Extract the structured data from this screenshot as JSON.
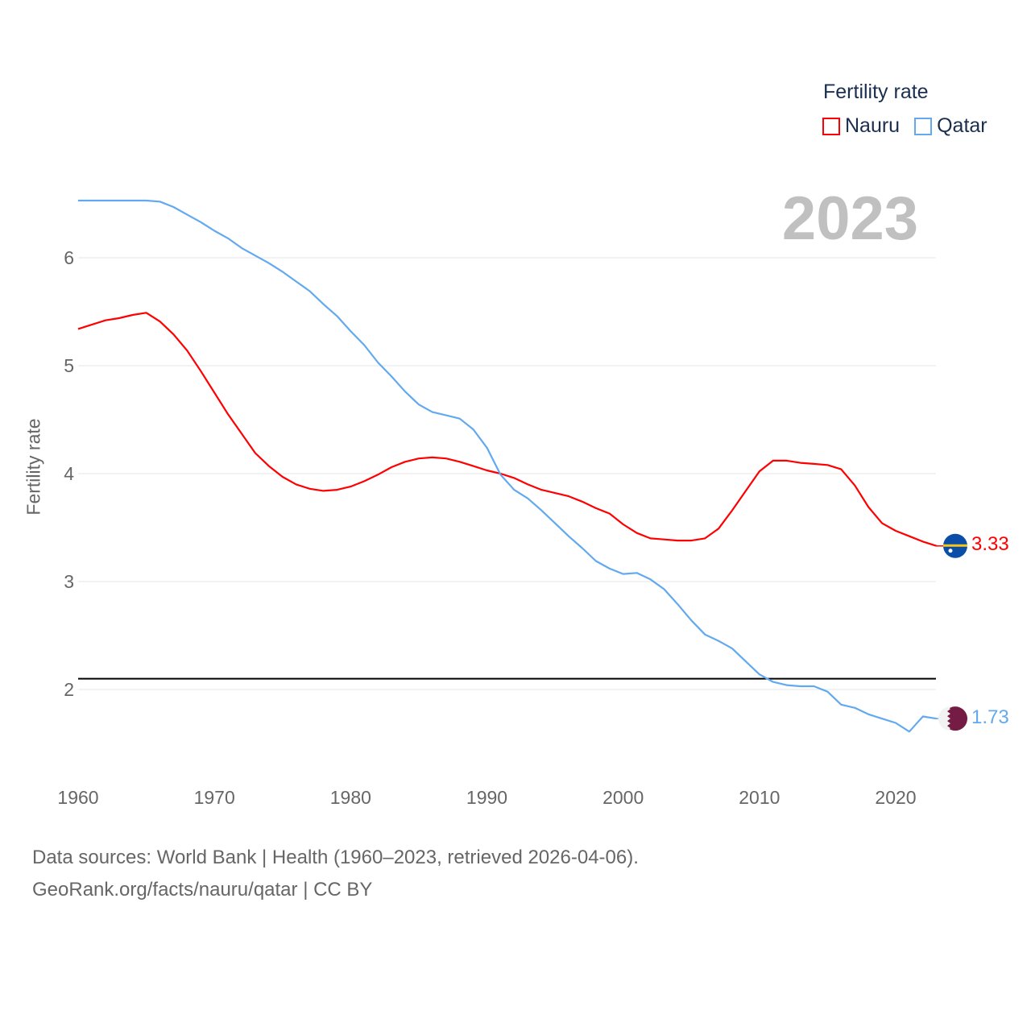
{
  "legend": {
    "title": "Fertility rate",
    "items": [
      {
        "name": "Nauru",
        "color": "#ff0000"
      },
      {
        "name": "Qatar",
        "color": "#63a9f0"
      }
    ]
  },
  "current_year": "2023",
  "footer": {
    "line1": "Data sources: World Bank | Health (1960–2023, retrieved 2026-04-06).",
    "line2": "GeoRank.org/facts/nauru/qatar | CC BY"
  },
  "end_labels": {
    "nauru": "3.33",
    "qatar": "1.73"
  },
  "chart_data": {
    "type": "line",
    "title": "Fertility rate",
    "xlabel": "",
    "ylabel": "Fertility rate",
    "xlim": [
      1960,
      2023
    ],
    "ylim": [
      1.3,
      6.6
    ],
    "x_ticks": [
      "1960",
      "1970",
      "1980",
      "1990",
      "2000",
      "2010",
      "2020"
    ],
    "y_ticks": [
      "2",
      "3",
      "4",
      "5",
      "6"
    ],
    "reference_line": 2.1,
    "grid": true,
    "legend_position": "top-right",
    "x_start": 1960,
    "series": [
      {
        "name": "Nauru",
        "color": "#ff0000",
        "values": [
          5.34,
          5.38,
          5.42,
          5.44,
          5.47,
          5.49,
          5.41,
          5.29,
          5.14,
          4.95,
          4.75,
          4.55,
          4.37,
          4.19,
          4.07,
          3.97,
          3.9,
          3.86,
          3.84,
          3.85,
          3.88,
          3.93,
          3.99,
          4.06,
          4.11,
          4.14,
          4.15,
          4.14,
          4.11,
          4.07,
          4.03,
          4.0,
          3.96,
          3.9,
          3.85,
          3.82,
          3.79,
          3.74,
          3.68,
          3.63,
          3.53,
          3.45,
          3.4,
          3.39,
          3.38,
          3.38,
          3.4,
          3.49,
          3.66,
          3.84,
          4.02,
          4.12,
          4.12,
          4.1,
          4.09,
          4.08,
          4.04,
          3.89,
          3.69,
          3.54,
          3.47,
          3.42,
          3.37,
          3.33
        ]
      },
      {
        "name": "Qatar",
        "color": "#63a9f0",
        "values": [
          6.53,
          6.53,
          6.53,
          6.53,
          6.53,
          6.53,
          6.52,
          6.47,
          6.4,
          6.33,
          6.25,
          6.18,
          6.09,
          6.02,
          5.95,
          5.87,
          5.78,
          5.69,
          5.57,
          5.46,
          5.32,
          5.19,
          5.03,
          4.9,
          4.76,
          4.64,
          4.57,
          4.54,
          4.51,
          4.41,
          4.24,
          3.99,
          3.85,
          3.77,
          3.66,
          3.54,
          3.42,
          3.31,
          3.19,
          3.12,
          3.07,
          3.08,
          3.02,
          2.93,
          2.79,
          2.64,
          2.51,
          2.45,
          2.38,
          2.26,
          2.14,
          2.07,
          2.04,
          2.03,
          2.03,
          1.98,
          1.86,
          1.83,
          1.77,
          1.73,
          1.69,
          1.61,
          1.75,
          1.73
        ]
      }
    ]
  }
}
